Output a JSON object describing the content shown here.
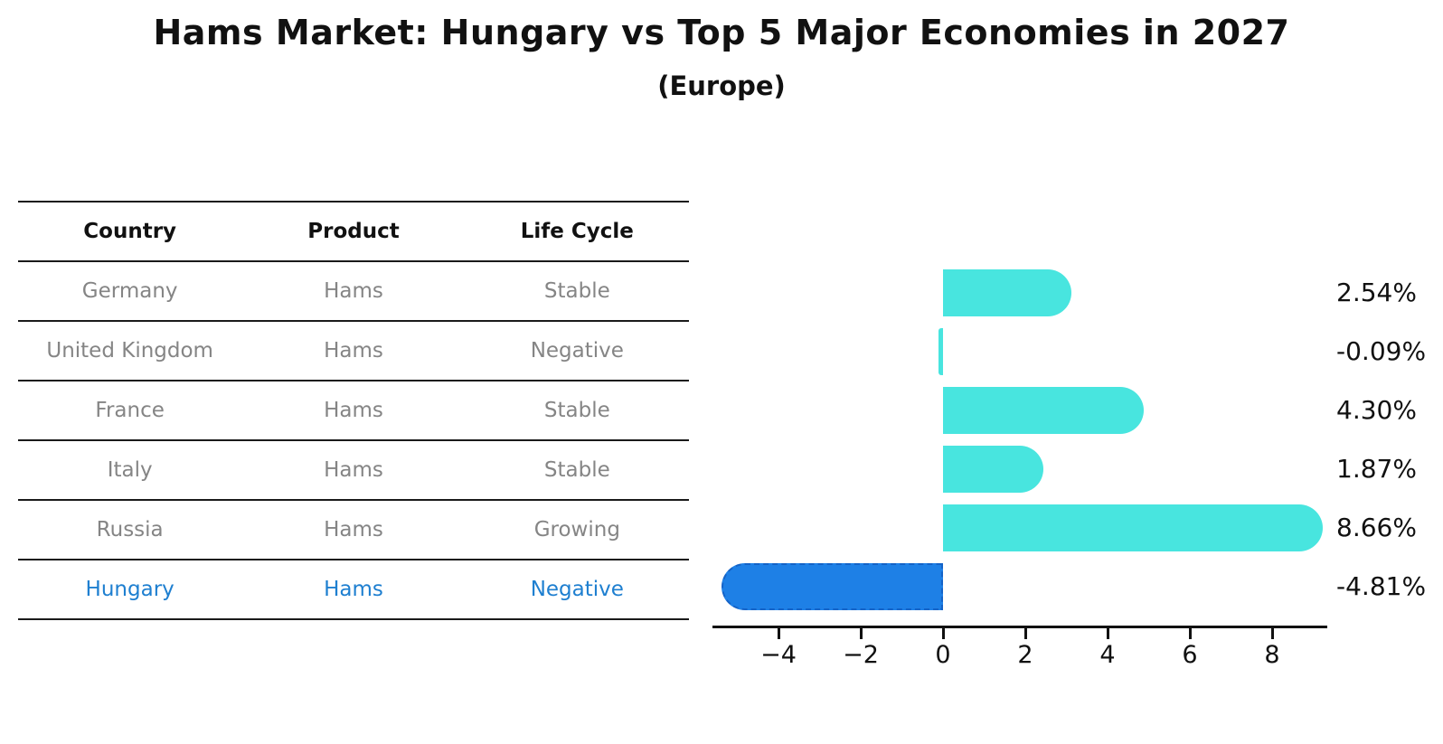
{
  "title": "Hams Market: Hungary vs Top 5 Major Economies in 2027",
  "subtitle": "(Europe)",
  "colors": {
    "bar": "#48E5DF",
    "highlight_bar": "#1E80E6",
    "highlight_border": "#1463C8",
    "highlight_text": "#1E7FD0",
    "row_text": "#858585",
    "ink": "#111111"
  },
  "table": {
    "headers": [
      "Country",
      "Product",
      "Life Cycle"
    ],
    "rows": [
      {
        "country": "Germany",
        "product": "Hams",
        "life_cycle": "Stable",
        "highlight": false
      },
      {
        "country": "United Kingdom",
        "product": "Hams",
        "life_cycle": "Negative",
        "highlight": false
      },
      {
        "country": "France",
        "product": "Hams",
        "life_cycle": "Stable",
        "highlight": false
      },
      {
        "country": "Italy",
        "product": "Hams",
        "life_cycle": "Stable",
        "highlight": false
      },
      {
        "country": "Russia",
        "product": "Hams",
        "life_cycle": "Growing",
        "highlight": false
      },
      {
        "country": "Hungary",
        "product": "Hams",
        "life_cycle": "Negative",
        "highlight": true
      }
    ]
  },
  "chart_data": {
    "type": "bar",
    "orientation": "horizontal",
    "title": "Hams Market: Hungary vs Top 5 Major Economies in 2027 (Europe)",
    "categories": [
      "Germany",
      "United Kingdom",
      "France",
      "Italy",
      "Russia",
      "Hungary"
    ],
    "values": [
      2.54,
      -0.09,
      4.3,
      1.87,
      8.66,
      -4.81
    ],
    "value_labels": [
      "2.54%",
      "-0.09%",
      "4.30%",
      "1.87%",
      "8.66%",
      "-4.81%"
    ],
    "highlight_category": "Hungary",
    "xlabel": "",
    "ylabel": "",
    "xlim": [
      -5.6,
      9.3
    ],
    "xticks": [
      -4,
      -2,
      0,
      2,
      4,
      6,
      8
    ],
    "xtick_labels": [
      "−4",
      "−2",
      "0",
      "2",
      "4",
      "6",
      "8"
    ],
    "grid": false,
    "legend": false
  }
}
